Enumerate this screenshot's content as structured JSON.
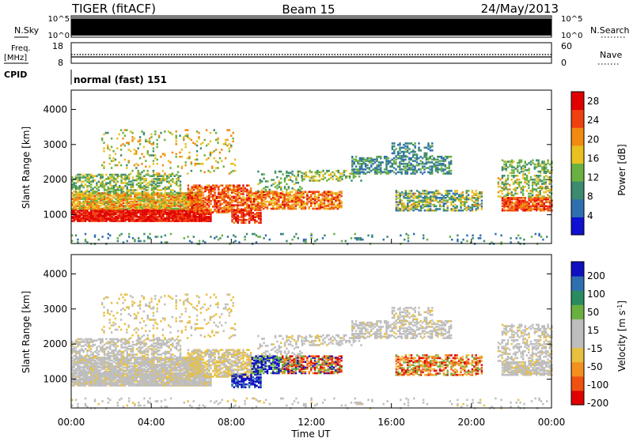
{
  "header": {
    "radar": "TIGER (fitACF)",
    "beam": "Beam 15",
    "date": "24/May/2013"
  },
  "noise_panel": {
    "left_label": "N.Sky",
    "right_label": "N.Search",
    "left_ticks": [
      "10^5",
      "10^0"
    ],
    "right_ticks": [
      "10^5",
      "10^0"
    ]
  },
  "freq_panel": {
    "left_label_1": "Freq.",
    "left_label_2": "[MHz]",
    "right_label": "Nave",
    "left_ticks": [
      "18",
      "8"
    ],
    "right_ticks": [
      "60",
      "0"
    ]
  },
  "cpid_panel": {
    "label": "CPID",
    "mode": "normal (fast) 151"
  },
  "colors": {
    "power_scale": [
      "#1010d0",
      "#2f6fb0",
      "#3c8a70",
      "#6ab040",
      "#e8c020",
      "#f08a10",
      "#f04010",
      "#e00000"
    ],
    "velocity_scale": [
      "#e00000",
      "#f05010",
      "#f39020",
      "#e8c040",
      "#bdbdbd",
      "#bdbdbd",
      "#6ab040",
      "#2a8a60",
      "#2f6fb0",
      "#1010c0"
    ]
  },
  "chart_data": [
    {
      "type": "heatmap",
      "title": "Power",
      "xlabel": "",
      "ylabel": "Slant Range [km]",
      "y_ticks": [
        "1000",
        "2000",
        "3000",
        "4000"
      ],
      "ylim": [
        180,
        4550
      ],
      "xlim": [
        "00:00",
        "24:00"
      ],
      "colorbar": {
        "label": "Power [dB]",
        "ticks": [
          "4",
          "8",
          "12",
          "16",
          "20",
          "24",
          "28"
        ],
        "range": [
          0,
          30
        ]
      },
      "grid": false
    },
    {
      "type": "heatmap",
      "title": "Velocity",
      "xlabel": "Time UT",
      "ylabel": "Slant Range [km]",
      "y_ticks": [
        "1000",
        "2000",
        "3000",
        "4000"
      ],
      "ylim": [
        180,
        4550
      ],
      "x_ticks": [
        "00:00",
        "04:00",
        "08:00",
        "12:00",
        "16:00",
        "20:00",
        "00:00"
      ],
      "colorbar": {
        "label": "Velocity [m s-1]",
        "ticks": [
          "200",
          "100",
          "50",
          "15",
          "-15",
          "-50",
          "-100",
          "-200"
        ],
        "range": [
          -250,
          250
        ]
      },
      "grid": false
    }
  ]
}
